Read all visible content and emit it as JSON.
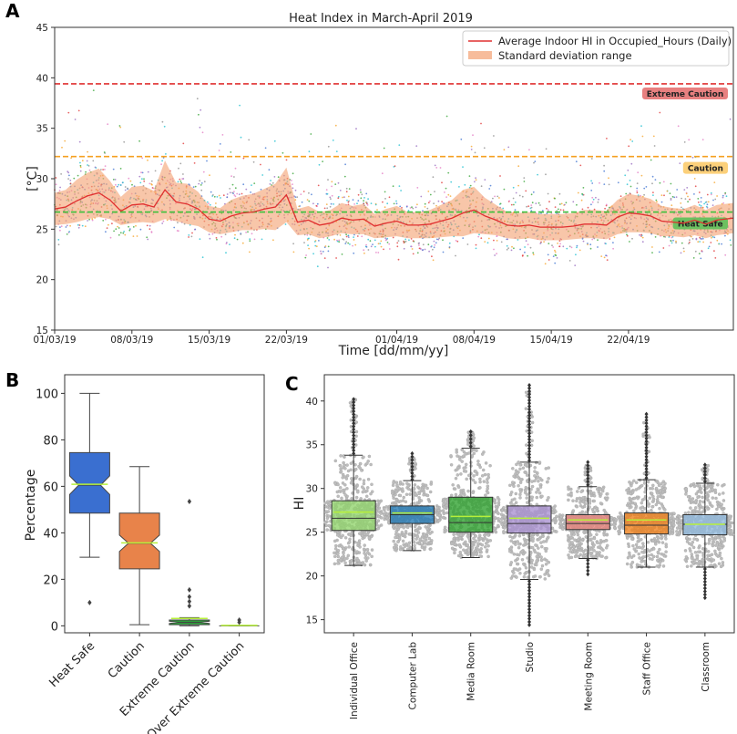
{
  "panels": {
    "a": "A",
    "b": "B",
    "c": "C"
  },
  "chart_data": [
    {
      "type": "line",
      "title": "Heat Index in March-April 2019",
      "xlabel": "Time [dd/mm/yy]",
      "ylabel": "[°C]",
      "ylim": [
        15,
        45
      ],
      "yticks": [
        15,
        20,
        25,
        30,
        35,
        40,
        45
      ],
      "xrange_days": [
        0,
        61.5
      ],
      "xticks": [
        {
          "day": 0,
          "label": "01/03/19"
        },
        {
          "day": 7,
          "label": "08/03/19"
        },
        {
          "day": 14,
          "label": "15/03/19"
        },
        {
          "day": 21,
          "label": "22/03/19"
        },
        {
          "day": 31,
          "label": "01/04/19"
        },
        {
          "day": 38,
          "label": "08/04/19"
        },
        {
          "day": 45,
          "label": "15/04/19"
        },
        {
          "day": 52,
          "label": "22/04/19"
        }
      ],
      "legend": {
        "line": "Average Indoor HI in Occupied_Hours (Daily)",
        "band": "Standard deviation range",
        "position": "top-right"
      },
      "thresholds": [
        {
          "label": "Extreme Caution",
          "value": 39.4,
          "color": "#e03030",
          "badge_color": "#e88080"
        },
        {
          "label": "Caution",
          "value": 32.2,
          "color": "#f5a020",
          "badge_color": "#fcd07a"
        },
        {
          "label": "Heat Safe",
          "value": 26.7,
          "color": "#3cc03c",
          "badge_color": "#6cc060"
        }
      ],
      "average_series": {
        "color": "#e03030",
        "band_color": "#f4a070",
        "days": [
          0,
          1,
          2,
          3,
          4,
          5,
          6,
          7,
          8,
          9,
          10,
          11,
          12,
          13,
          14,
          15,
          16,
          17,
          18,
          19,
          20,
          21,
          22,
          23,
          24,
          25,
          26,
          27,
          28,
          29,
          30,
          31,
          32,
          33,
          34,
          35,
          36,
          37,
          38,
          39,
          40,
          41,
          42,
          43,
          44,
          45,
          46,
          47,
          48,
          49,
          50,
          51,
          52,
          53,
          54,
          55,
          56,
          57,
          58,
          59,
          60,
          61.5
        ],
        "values": [
          27.0,
          27.2,
          27.8,
          28.3,
          28.6,
          27.9,
          26.8,
          27.4,
          27.5,
          27.2,
          28.9,
          27.7,
          27.5,
          27.0,
          26.0,
          25.8,
          26.3,
          26.6,
          26.7,
          27.0,
          27.2,
          28.4,
          25.7,
          25.9,
          25.4,
          25.6,
          26.1,
          25.9,
          26.0,
          25.3,
          25.6,
          25.8,
          25.4,
          25.4,
          25.5,
          25.8,
          26.1,
          26.6,
          26.9,
          26.3,
          25.9,
          25.4,
          25.3,
          25.4,
          25.2,
          25.2,
          25.2,
          25.3,
          25.5,
          25.5,
          25.4,
          26.2,
          26.6,
          26.5,
          26.3,
          25.8,
          25.7,
          25.6,
          25.9,
          25.5,
          25.9,
          26.1
        ],
        "band_halfwidth": [
          1.6,
          1.7,
          2.1,
          2.3,
          2.4,
          1.9,
          1.4,
          1.8,
          1.8,
          1.6,
          2.9,
          1.9,
          2.0,
          1.7,
          1.3,
          1.3,
          1.6,
          1.7,
          1.8,
          2.0,
          2.3,
          2.7,
          1.3,
          1.4,
          1.3,
          1.3,
          1.5,
          1.4,
          1.5,
          1.2,
          1.4,
          1.5,
          1.3,
          1.3,
          1.4,
          1.6,
          1.8,
          2.3,
          2.3,
          1.8,
          1.5,
          1.3,
          1.3,
          1.3,
          1.3,
          1.3,
          1.3,
          1.3,
          1.4,
          1.4,
          1.4,
          1.7,
          1.9,
          1.8,
          1.7,
          1.5,
          1.4,
          1.4,
          1.5,
          1.4,
          1.5,
          1.5
        ]
      }
    },
    {
      "type": "box",
      "ylabel": "Percentage",
      "ylim": [
        -3,
        108
      ],
      "yticks": [
        0,
        20,
        40,
        60,
        80,
        100
      ],
      "categories": [
        "Heat Safe",
        "Caution",
        "Extreme Caution",
        "Over Extreme Caution"
      ],
      "colors": [
        "#3a6fd0",
        "#e8834a",
        "#2f9e3c",
        "#7bd36a"
      ],
      "boxes": [
        {
          "min": 29.5,
          "q1": 48.5,
          "median": 60.5,
          "mean": 60.9,
          "q3": 74.5,
          "max": 100,
          "notch": [
            56.5,
            64.5
          ],
          "outliers": [
            10
          ]
        },
        {
          "min": 0.5,
          "q1": 24.5,
          "median": 35.5,
          "mean": 35.7,
          "q3": 48.5,
          "max": 68.5,
          "notch": [
            32,
            39
          ],
          "outliers": []
        },
        {
          "min": 0,
          "q1": 0.5,
          "median": 1.5,
          "mean": 3.2,
          "q3": 2.5,
          "max": 3.5,
          "notch": [
            1,
            2
          ],
          "outliers": [
            53.5,
            15.5,
            12.5,
            10.5,
            8.5
          ]
        },
        {
          "min": 0,
          "q1": 0,
          "median": 0,
          "mean": 0.2,
          "q3": 0,
          "max": 0,
          "notch": [
            0,
            0
          ],
          "outliers": [
            2.5,
            1.5
          ]
        }
      ]
    },
    {
      "type": "box",
      "ylabel": "HI",
      "ylim": [
        13.5,
        43
      ],
      "yticks": [
        15,
        20,
        25,
        30,
        35,
        40
      ],
      "categories": [
        "Individual Office",
        "Computer Lab",
        "Media Room",
        "Studio",
        "Meeting Room",
        "Staff Office",
        "Classroom"
      ],
      "colors": [
        "#8fd36a",
        "#1f77b4",
        "#2ca02c",
        "#a88fcf",
        "#e8827a",
        "#f07f17",
        "#8fb8dc"
      ],
      "boxes": [
        {
          "min": 21.2,
          "q1": 25.2,
          "median": 26.6,
          "mean": 27.3,
          "q3": 28.6,
          "max": 33.8,
          "outliers_upper": [
            34,
            40.2
          ]
        },
        {
          "min": 22.9,
          "q1": 26.0,
          "median": 27.0,
          "mean": 27.2,
          "q3": 28.0,
          "max": 30.9,
          "outliers_upper": [
            31,
            34
          ]
        },
        {
          "min": 22.1,
          "q1": 25.0,
          "median": 26.1,
          "mean": 26.8,
          "q3": 29.0,
          "max": 34.6,
          "outliers_upper": [
            34.8,
            36.5
          ]
        },
        {
          "min": 19.6,
          "q1": 24.9,
          "median": 26.0,
          "mean": 26.6,
          "q3": 28.0,
          "max": 33.0,
          "outliers_upper": [
            33.2,
            41.8
          ],
          "outliers_lower": [
            14.4,
            19.4
          ]
        },
        {
          "min": 22.0,
          "q1": 25.3,
          "median": 26.0,
          "mean": 26.4,
          "q3": 27.0,
          "max": 30.2,
          "outliers_upper": [
            30.4,
            33.0
          ],
          "outliers_lower": [
            20.2,
            21.8
          ]
        },
        {
          "min": 21.0,
          "q1": 24.8,
          "median": 25.8,
          "mean": 26.4,
          "q3": 27.2,
          "max": 31.0,
          "outliers_upper": [
            31.2,
            38.5
          ]
        },
        {
          "min": 21.0,
          "q1": 24.7,
          "median": 25.9,
          "mean": 25.9,
          "q3": 27.0,
          "max": 30.6,
          "outliers_upper": [
            30.8,
            32.7
          ],
          "outliers_lower": [
            17.5,
            20.8
          ]
        }
      ]
    }
  ]
}
